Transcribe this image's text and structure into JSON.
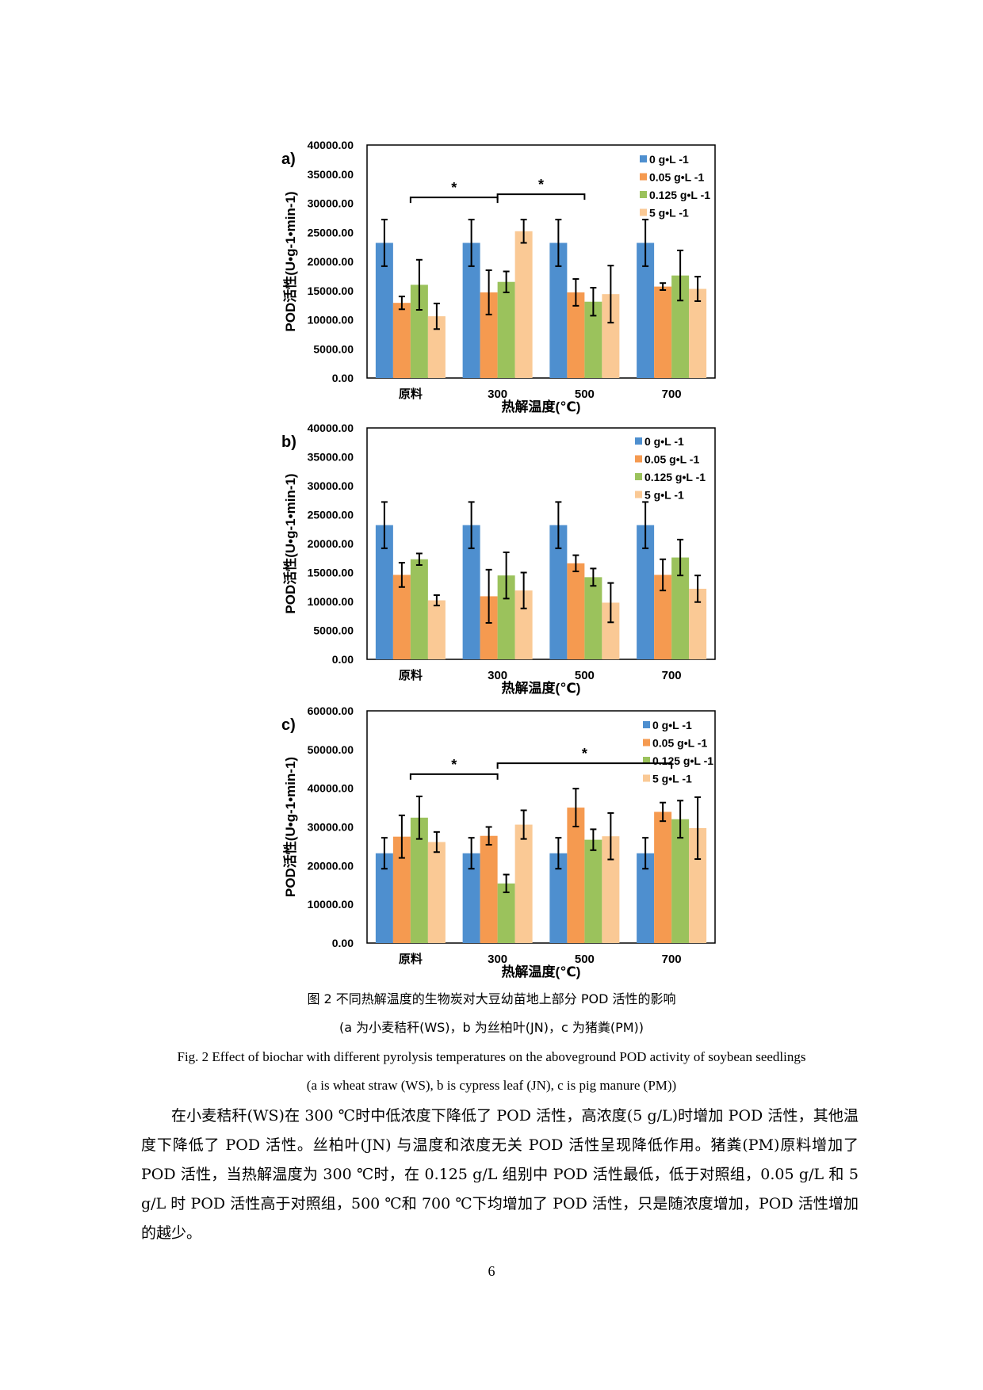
{
  "chart_data": [
    {
      "type": "bar",
      "panel_label": "a)",
      "title": "",
      "xlabel": "热解温度(℃)",
      "ylabel": "POD活性(U•g-1•min-1)",
      "ylim": [
        0,
        40000
      ],
      "yticks": [
        "0.00",
        "5000.00",
        "10000.00",
        "15000.00",
        "20000.00",
        "25000.00",
        "30000.00",
        "35000.00",
        "40000.00"
      ],
      "categories": [
        "原料",
        "300",
        "500",
        "700"
      ],
      "series": [
        {
          "name": "0 g•L -1",
          "color": "#4E8FCF",
          "values": [
            23200,
            23200,
            23200,
            23200
          ],
          "errors": [
            4000,
            4000,
            4000,
            4000
          ]
        },
        {
          "name": "0.05 g•L -1",
          "color": "#F59A50",
          "values": [
            12900,
            14700,
            14700,
            15700
          ],
          "errors": [
            1100,
            3800,
            2300,
            600
          ]
        },
        {
          "name": "0.125 g•L -1",
          "color": "#9BC25C",
          "values": [
            16000,
            16500,
            13100,
            17600
          ],
          "errors": [
            4300,
            1800,
            2400,
            4300
          ]
        },
        {
          "name": "5 g•L -1",
          "color": "#FAC995",
          "values": [
            10600,
            25200,
            14400,
            15300
          ],
          "errors": [
            2200,
            2000,
            4900,
            2100
          ]
        }
      ],
      "significance": [
        {
          "from": "原料",
          "to": "300",
          "label": "*"
        },
        {
          "from": "300",
          "to": "500",
          "label": "*"
        }
      ],
      "legend_position": "top-right"
    },
    {
      "type": "bar",
      "panel_label": "b)",
      "title": "",
      "xlabel": "热解温度(℃)",
      "ylabel": "POD活性(U•g-1•min-1)",
      "ylim": [
        0,
        40000
      ],
      "yticks": [
        "0.00",
        "5000.00",
        "10000.00",
        "15000.00",
        "20000.00",
        "25000.00",
        "30000.00",
        "35000.00",
        "40000.00"
      ],
      "categories": [
        "原料",
        "300",
        "500",
        "700"
      ],
      "series": [
        {
          "name": "0 g•L -1",
          "color": "#4E8FCF",
          "values": [
            23200,
            23200,
            23200,
            23200
          ],
          "errors": [
            4000,
            4000,
            4000,
            4000
          ]
        },
        {
          "name": "0.05 g•L -1",
          "color": "#F59A50",
          "values": [
            14600,
            10900,
            16600,
            14600
          ],
          "errors": [
            2100,
            4600,
            1400,
            2700
          ]
        },
        {
          "name": "0.125 g•L -1",
          "color": "#9BC25C",
          "values": [
            17300,
            14500,
            14200,
            17600
          ],
          "errors": [
            1000,
            4000,
            1500,
            3100
          ]
        },
        {
          "name": "5 g•L -1",
          "color": "#FAC995",
          "values": [
            10200,
            11900,
            9800,
            12200
          ],
          "errors": [
            900,
            3100,
            3400,
            2300
          ]
        }
      ],
      "significance": [],
      "legend_position": "top-right"
    },
    {
      "type": "bar",
      "panel_label": "c)",
      "title": "",
      "xlabel": "热解温度(℃)",
      "ylabel": "POD活性(U•g-1•min-1)",
      "ylim": [
        0,
        60000
      ],
      "yticks": [
        "0.00",
        "10000.00",
        "20000.00",
        "30000.00",
        "40000.00",
        "50000.00",
        "60000.00"
      ],
      "categories": [
        "原料",
        "300",
        "500",
        "700"
      ],
      "series": [
        {
          "name": "0 g•L -1",
          "color": "#4E8FCF",
          "values": [
            23200,
            23200,
            23200,
            23200
          ],
          "errors": [
            4000,
            4000,
            4000,
            4000
          ]
        },
        {
          "name": "0.05 g•L -1",
          "color": "#F59A50",
          "values": [
            27500,
            27700,
            35000,
            33900
          ],
          "errors": [
            5500,
            2300,
            4900,
            2400
          ]
        },
        {
          "name": "0.125 g•L -1",
          "color": "#9BC25C",
          "values": [
            32400,
            15400,
            26700,
            32000
          ],
          "errors": [
            5500,
            2300,
            2700,
            4800
          ]
        },
        {
          "name": "5 g•L -1",
          "color": "#FAC995",
          "values": [
            26100,
            30600,
            27600,
            29700
          ],
          "errors": [
            2600,
            3700,
            6000,
            8000
          ]
        }
      ],
      "significance": [
        {
          "from": "原料",
          "to": "300",
          "label": "*"
        },
        {
          "from": "300",
          "to": "700",
          "label": "*"
        }
      ],
      "legend_position": "top-right"
    }
  ],
  "caption": {
    "zh_title": "图 2  不同热解温度的生物炭对大豆幼苗地上部分 POD 活性的影响",
    "zh_sub": "(a 为小麦秸秆(WS)，b 为丝柏叶(JN)，c 为猪粪(PM))",
    "en_title": "Fig. 2 Effect of biochar with different pyrolysis temperatures on the aboveground POD activity of soybean seedlings",
    "en_sub": "(a is wheat straw (WS), b is cypress leaf (JN), c is pig manure (PM))"
  },
  "body": {
    "paragraph": "在小麦秸秆(WS)在 300 ℃时中低浓度下降低了 POD 活性，高浓度(5 g/L)时增加 POD 活性，其他温度下降低了 POD 活性。丝柏叶(JN) 与温度和浓度无关 POD 活性呈现降低作用。猪粪(PM)原料增加了 POD 活性，当热解温度为 300 ℃时，在 0.125 g/L 组别中 POD 活性最低，低于对照组，0.05 g/L 和 5 g/L 时 POD 活性高于对照组，500 ℃和 700 ℃下均增加了 POD 活性，只是随浓度增加，POD 活性增加的越少。"
  },
  "page_number": "6"
}
